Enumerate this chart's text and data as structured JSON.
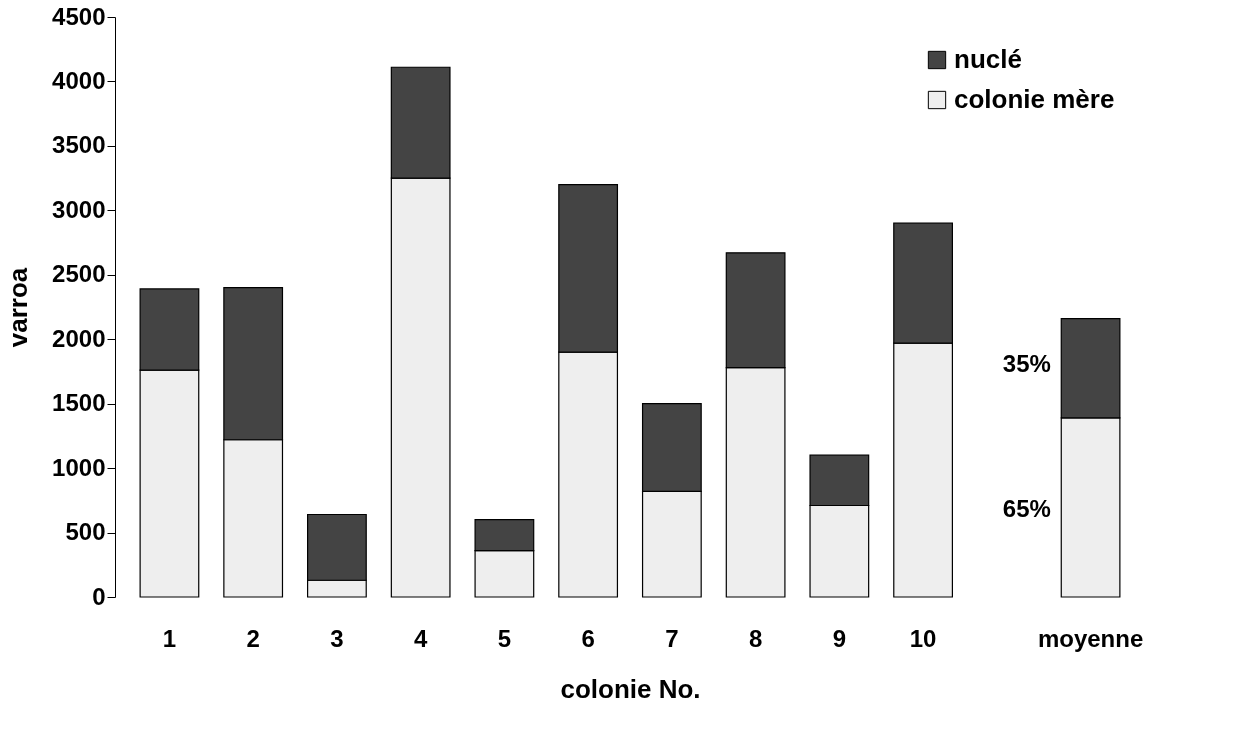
{
  "chart_data": {
    "type": "bar",
    "stacked": true,
    "xlabel": "colonie No.",
    "ylabel": "varroa",
    "categories": [
      "1",
      "2",
      "3",
      "4",
      "5",
      "6",
      "7",
      "8",
      "9",
      "10",
      "moyenne"
    ],
    "series": [
      {
        "name": "colonie mère",
        "color": "#eeeeee",
        "values": [
          1760,
          1220,
          130,
          3250,
          360,
          1900,
          820,
          1780,
          710,
          1970,
          1390
        ]
      },
      {
        "name": "nuclé",
        "color": "#444444",
        "values": [
          630,
          1180,
          510,
          860,
          240,
          1300,
          680,
          890,
          390,
          930,
          770
        ]
      }
    ],
    "ylim": [
      0,
      4500
    ],
    "yticks": [
      0,
      500,
      1000,
      1500,
      2000,
      2500,
      3000,
      3500,
      4000,
      4500
    ],
    "grid": false,
    "legend": "top right",
    "annotations": [
      "35%",
      "65%"
    ]
  }
}
